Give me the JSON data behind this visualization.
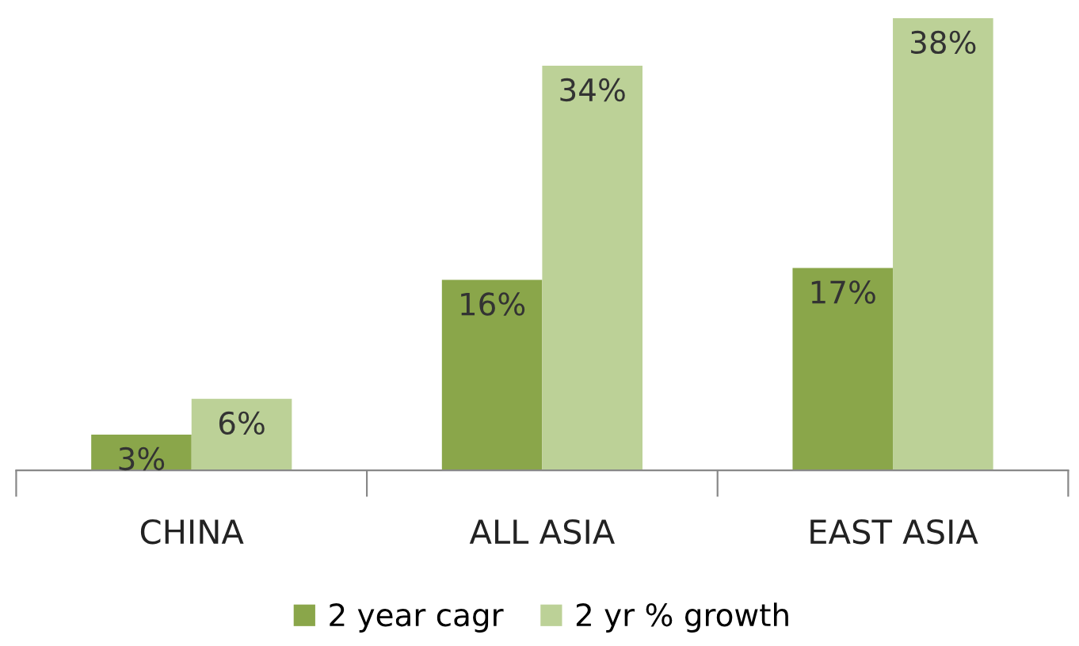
{
  "chart_data": {
    "type": "bar",
    "categories": [
      "CHINA",
      "ALL ASIA",
      "EAST ASIA"
    ],
    "series": [
      {
        "name": "2 year cagr",
        "color": "#8aa64a",
        "values": [
          3,
          16,
          17
        ],
        "value_labels": [
          "3%",
          "16%",
          "17%"
        ]
      },
      {
        "name": "2 yr % growth",
        "color": "#bcd197",
        "values": [
          6,
          34,
          38
        ],
        "value_labels": [
          "6%",
          "34%",
          "38%"
        ]
      }
    ],
    "legend": "bottom",
    "grid": false
  }
}
